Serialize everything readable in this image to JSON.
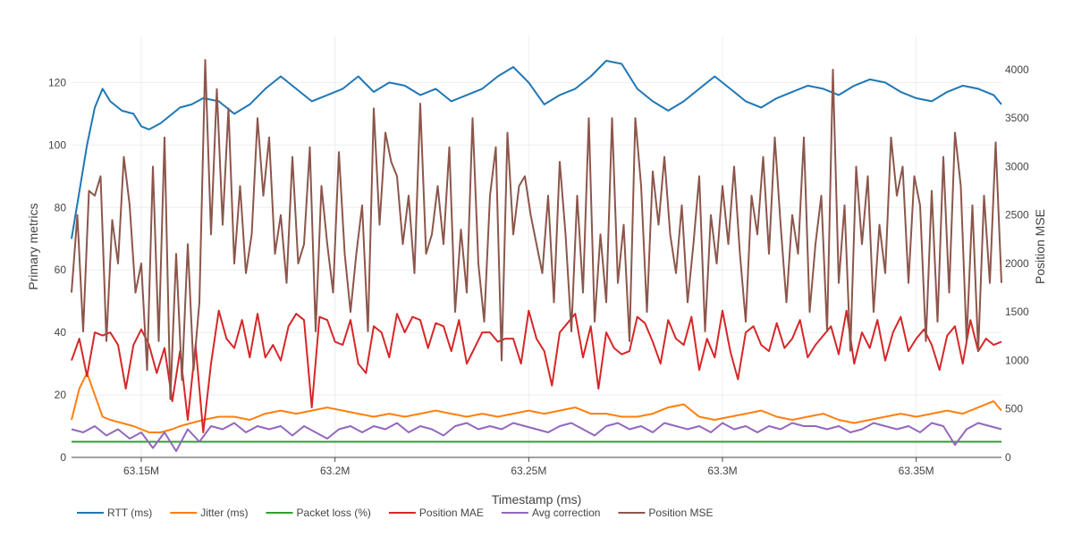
{
  "chart_data": {
    "type": "line",
    "xlabel": "Timestamp (ms)",
    "ylabel": "Primary metrics",
    "y2label": "Position MSE",
    "xlim": [
      63132000,
      63372000
    ],
    "ylim": [
      0,
      135
    ],
    "y2lim": [
      0,
      4350
    ],
    "xticks": [
      {
        "value": 63150000,
        "label": "63.15M"
      },
      {
        "value": 63200000,
        "label": "63.2M"
      },
      {
        "value": 63250000,
        "label": "63.25M"
      },
      {
        "value": 63300000,
        "label": "63.3M"
      },
      {
        "value": 63350000,
        "label": "63.35M"
      }
    ],
    "yticks": [
      {
        "value": 0,
        "label": "0"
      },
      {
        "value": 20,
        "label": "20"
      },
      {
        "value": 40,
        "label": "40"
      },
      {
        "value": 60,
        "label": "60"
      },
      {
        "value": 80,
        "label": "80"
      },
      {
        "value": 100,
        "label": "100"
      },
      {
        "value": 120,
        "label": "120"
      }
    ],
    "y2ticks": [
      {
        "value": 0,
        "label": "0"
      },
      {
        "value": 500,
        "label": "500"
      },
      {
        "value": 1000,
        "label": "1000"
      },
      {
        "value": 1500,
        "label": "1500"
      },
      {
        "value": 2000,
        "label": "2000"
      },
      {
        "value": 2500,
        "label": "2500"
      },
      {
        "value": 3000,
        "label": "3000"
      },
      {
        "value": 3500,
        "label": "3500"
      },
      {
        "value": 4000,
        "label": "4000"
      }
    ],
    "series": [
      {
        "name": "RTT (ms)",
        "color": "#1f77b4",
        "axis": "y",
        "x": [
          63132000,
          63134000,
          63136000,
          63138000,
          63140000,
          63142000,
          63145000,
          63148000,
          63150000,
          63152000,
          63155000,
          63158000,
          63160000,
          63163000,
          63166000,
          63170000,
          63174000,
          63178000,
          63182000,
          63186000,
          63190000,
          63194000,
          63198000,
          63202000,
          63206000,
          63210000,
          63214000,
          63218000,
          63222000,
          63226000,
          63230000,
          63234000,
          63238000,
          63242000,
          63246000,
          63250000,
          63254000,
          63258000,
          63262000,
          63266000,
          63270000,
          63274000,
          63278000,
          63282000,
          63286000,
          63290000,
          63294000,
          63298000,
          63302000,
          63306000,
          63310000,
          63314000,
          63318000,
          63322000,
          63326000,
          63330000,
          63334000,
          63338000,
          63342000,
          63346000,
          63350000,
          63354000,
          63358000,
          63362000,
          63366000,
          63370000,
          63372000
        ],
        "y": [
          70,
          85,
          100,
          112,
          118,
          114,
          111,
          110,
          106,
          105,
          107,
          110,
          112,
          113,
          115,
          114,
          110,
          113,
          118,
          122,
          118,
          114,
          116,
          118,
          122,
          117,
          120,
          119,
          116,
          118,
          114,
          116,
          118,
          122,
          125,
          120,
          113,
          116,
          118,
          122,
          127,
          126,
          118,
          114,
          111,
          114,
          118,
          122,
          118,
          114,
          112,
          115,
          117,
          119,
          118,
          116,
          119,
          121,
          120,
          117,
          115,
          114,
          117,
          119,
          118,
          116,
          113
        ]
      },
      {
        "name": "Jitter (ms)",
        "color": "#ff7f0e",
        "axis": "y",
        "x": [
          63132000,
          63134000,
          63136000,
          63138000,
          63140000,
          63142000,
          63145000,
          63148000,
          63150000,
          63152000,
          63155000,
          63158000,
          63160000,
          63163000,
          63166000,
          63170000,
          63174000,
          63178000,
          63182000,
          63186000,
          63190000,
          63194000,
          63198000,
          63202000,
          63206000,
          63210000,
          63214000,
          63218000,
          63222000,
          63226000,
          63230000,
          63234000,
          63238000,
          63242000,
          63246000,
          63250000,
          63254000,
          63258000,
          63262000,
          63266000,
          63270000,
          63274000,
          63278000,
          63282000,
          63286000,
          63290000,
          63294000,
          63298000,
          63302000,
          63306000,
          63310000,
          63314000,
          63318000,
          63322000,
          63326000,
          63330000,
          63334000,
          63338000,
          63342000,
          63346000,
          63350000,
          63354000,
          63358000,
          63362000,
          63366000,
          63370000,
          63372000
        ],
        "y": [
          12,
          22,
          27,
          20,
          13,
          12,
          11,
          10,
          9,
          8,
          8,
          9,
          10,
          11,
          12,
          13,
          13,
          12,
          14,
          15,
          14,
          15,
          16,
          15,
          14,
          13,
          14,
          13,
          14,
          15,
          14,
          13,
          14,
          13,
          14,
          15,
          14,
          15,
          16,
          14,
          14,
          13,
          13,
          14,
          16,
          17,
          13,
          12,
          13,
          14,
          15,
          13,
          12,
          13,
          14,
          12,
          11,
          12,
          13,
          14,
          13,
          14,
          15,
          14,
          16,
          18,
          15
        ]
      },
      {
        "name": "Packet loss (%)",
        "color": "#2ca02c",
        "axis": "y",
        "x": [
          63132000,
          63372000
        ],
        "y": [
          5,
          5
        ]
      },
      {
        "name": "Position MAE",
        "color": "#d62728",
        "axis": "y",
        "x": [
          63132000,
          63134000,
          63136000,
          63138000,
          63140000,
          63142000,
          63144000,
          63146000,
          63148000,
          63150000,
          63152000,
          63154000,
          63156000,
          63158000,
          63160000,
          63162000,
          63164000,
          63166000,
          63168000,
          63170000,
          63172000,
          63174000,
          63176000,
          63178000,
          63180000,
          63182000,
          63184000,
          63186000,
          63188000,
          63190000,
          63192000,
          63194000,
          63196000,
          63198000,
          63200000,
          63202000,
          63204000,
          63206000,
          63208000,
          63210000,
          63212000,
          63214000,
          63216000,
          63218000,
          63220000,
          63222000,
          63224000,
          63226000,
          63228000,
          63230000,
          63232000,
          63234000,
          63236000,
          63238000,
          63240000,
          63242000,
          63244000,
          63246000,
          63248000,
          63250000,
          63252000,
          63254000,
          63256000,
          63258000,
          63260000,
          63262000,
          63264000,
          63266000,
          63268000,
          63270000,
          63272000,
          63274000,
          63276000,
          63278000,
          63280000,
          63282000,
          63284000,
          63286000,
          63288000,
          63290000,
          63292000,
          63294000,
          63296000,
          63298000,
          63300000,
          63302000,
          63304000,
          63306000,
          63308000,
          63310000,
          63312000,
          63314000,
          63316000,
          63318000,
          63320000,
          63322000,
          63324000,
          63326000,
          63328000,
          63330000,
          63332000,
          63334000,
          63336000,
          63338000,
          63340000,
          63342000,
          63344000,
          63346000,
          63348000,
          63350000,
          63352000,
          63354000,
          63356000,
          63358000,
          63360000,
          63362000,
          63364000,
          63366000,
          63368000,
          63370000,
          63372000
        ],
        "y": [
          31,
          38,
          26,
          40,
          39,
          40,
          36,
          22,
          36,
          41,
          36,
          27,
          35,
          18,
          34,
          12,
          36,
          8,
          30,
          47,
          38,
          35,
          44,
          32,
          46,
          32,
          36,
          31,
          42,
          46,
          44,
          16,
          45,
          44,
          37,
          36,
          44,
          30,
          27,
          42,
          40,
          32,
          46,
          40,
          45,
          44,
          35,
          43,
          42,
          34,
          44,
          30,
          35,
          40,
          40,
          37,
          38,
          38,
          30,
          47,
          38,
          34,
          23,
          40,
          43,
          46,
          32,
          42,
          22,
          40,
          35,
          33,
          34,
          45,
          43,
          37,
          30,
          44,
          38,
          36,
          45,
          28,
          38,
          32,
          47,
          34,
          25,
          40,
          42,
          36,
          34,
          43,
          35,
          38,
          44,
          32,
          36,
          39,
          42,
          33,
          47,
          30,
          40,
          35,
          44,
          31,
          40,
          45,
          34,
          38,
          41,
          36,
          28,
          39,
          42,
          30,
          44,
          34,
          38,
          36,
          37
        ]
      },
      {
        "name": "Avg correction",
        "color": "#9467bd",
        "axis": "y",
        "x": [
          63132000,
          63135000,
          63138000,
          63141000,
          63144000,
          63147000,
          63150000,
          63153000,
          63156000,
          63159000,
          63162000,
          63165000,
          63168000,
          63171000,
          63174000,
          63177000,
          63180000,
          63183000,
          63186000,
          63189000,
          63192000,
          63195000,
          63198000,
          63201000,
          63204000,
          63207000,
          63210000,
          63213000,
          63216000,
          63219000,
          63222000,
          63225000,
          63228000,
          63231000,
          63234000,
          63237000,
          63240000,
          63243000,
          63246000,
          63249000,
          63252000,
          63255000,
          63258000,
          63261000,
          63264000,
          63267000,
          63270000,
          63273000,
          63276000,
          63279000,
          63282000,
          63285000,
          63288000,
          63291000,
          63294000,
          63297000,
          63300000,
          63303000,
          63306000,
          63309000,
          63312000,
          63315000,
          63318000,
          63321000,
          63324000,
          63327000,
          63330000,
          63333000,
          63336000,
          63339000,
          63342000,
          63345000,
          63348000,
          63351000,
          63354000,
          63357000,
          63360000,
          63363000,
          63366000,
          63369000,
          63372000
        ],
        "y": [
          9,
          8,
          10,
          7,
          9,
          6,
          8,
          3,
          8,
          2,
          9,
          5,
          10,
          9,
          11,
          8,
          10,
          9,
          10,
          7,
          10,
          8,
          6,
          9,
          10,
          8,
          10,
          9,
          11,
          8,
          10,
          9,
          7,
          10,
          11,
          9,
          10,
          9,
          11,
          10,
          9,
          8,
          10,
          11,
          9,
          7,
          10,
          11,
          9,
          10,
          8,
          11,
          10,
          9,
          10,
          8,
          11,
          9,
          10,
          8,
          10,
          9,
          11,
          10,
          10,
          9,
          10,
          8,
          9,
          11,
          10,
          9,
          10,
          8,
          11,
          10,
          4,
          9,
          11,
          10,
          9
        ]
      },
      {
        "name": "Position MSE",
        "color": "#8c564b",
        "axis": "y2",
        "x": [
          63132000,
          63133500,
          63135000,
          63136500,
          63138000,
          63139500,
          63141000,
          63142500,
          63144000,
          63145500,
          63147000,
          63148500,
          63150000,
          63151500,
          63153000,
          63154500,
          63156000,
          63157500,
          63159000,
          63160500,
          63162000,
          63163500,
          63165000,
          63166500,
          63168000,
          63169500,
          63171000,
          63172500,
          63174000,
          63175500,
          63177000,
          63178500,
          63180000,
          63181500,
          63183000,
          63184500,
          63186000,
          63187500,
          63189000,
          63190500,
          63192000,
          63193500,
          63195000,
          63196500,
          63198000,
          63199500,
          63201000,
          63202500,
          63204000,
          63205500,
          63207000,
          63208500,
          63210000,
          63211500,
          63213000,
          63214500,
          63216000,
          63217500,
          63219000,
          63220500,
          63222000,
          63223500,
          63225000,
          63226500,
          63228000,
          63229500,
          63231000,
          63232500,
          63234000,
          63235500,
          63237000,
          63238500,
          63240000,
          63241500,
          63243000,
          63244500,
          63246000,
          63247500,
          63249000,
          63250500,
          63252000,
          63253500,
          63255000,
          63256500,
          63258000,
          63259500,
          63261000,
          63262500,
          63264000,
          63265500,
          63267000,
          63268500,
          63270000,
          63271500,
          63273000,
          63274500,
          63276000,
          63277500,
          63279000,
          63280500,
          63282000,
          63283500,
          63285000,
          63286500,
          63288000,
          63289500,
          63291000,
          63292500,
          63294000,
          63295500,
          63297000,
          63298500,
          63300000,
          63301500,
          63303000,
          63304500,
          63306000,
          63307500,
          63309000,
          63310500,
          63312000,
          63313500,
          63315000,
          63316500,
          63318000,
          63319500,
          63321000,
          63322500,
          63324000,
          63325500,
          63327000,
          63328500,
          63330000,
          63331500,
          63333000,
          63334500,
          63336000,
          63337500,
          63339000,
          63340500,
          63342000,
          63343500,
          63345000,
          63346500,
          63348000,
          63349500,
          63351000,
          63352500,
          63354000,
          63355500,
          63357000,
          63358500,
          63360000,
          63361500,
          63363000,
          63364500,
          63366000,
          63367500,
          63369000,
          63370500,
          63372000
        ],
        "y": [
          1700,
          2500,
          1300,
          2750,
          2700,
          2900,
          1200,
          2450,
          2000,
          3100,
          2600,
          1700,
          2000,
          900,
          3000,
          1200,
          3300,
          600,
          2100,
          800,
          2200,
          900,
          1600,
          4100,
          2300,
          3800,
          2400,
          3600,
          2000,
          2800,
          1900,
          2300,
          3500,
          2700,
          3300,
          2100,
          2500,
          1800,
          3100,
          2000,
          2200,
          3200,
          1300,
          2800,
          2200,
          1700,
          3150,
          2100,
          1500,
          2100,
          2600,
          1300,
          3600,
          2400,
          3350,
          3050,
          2900,
          2200,
          2700,
          1900,
          3650,
          2100,
          2300,
          2800,
          2200,
          3200,
          1500,
          2350,
          1700,
          3500,
          2000,
          1400,
          2700,
          3200,
          1000,
          3350,
          2300,
          2800,
          2900,
          2500,
          2200,
          1900,
          2700,
          1600,
          3050,
          2300,
          1300,
          2700,
          1700,
          3500,
          1400,
          2300,
          1600,
          3500,
          1800,
          2400,
          1200,
          3500,
          2800,
          1500,
          2950,
          2400,
          3100,
          2300,
          1900,
          2600,
          1600,
          2200,
          2900,
          1300,
          2500,
          2000,
          2800,
          2200,
          3000,
          2100,
          1400,
          2700,
          2300,
          3100,
          2100,
          3300,
          2400,
          1600,
          2500,
          2100,
          3300,
          1500,
          2200,
          2700,
          1300,
          4000,
          1800,
          2600,
          1100,
          3000,
          2200,
          2900,
          1500,
          2400,
          1900,
          3300,
          2700,
          3000,
          1800,
          2900,
          2600,
          1200,
          2750,
          1400,
          3100,
          1700,
          3350,
          2800,
          1200,
          2600,
          1100,
          2700,
          1800,
          3250,
          1800
        ]
      }
    ]
  }
}
